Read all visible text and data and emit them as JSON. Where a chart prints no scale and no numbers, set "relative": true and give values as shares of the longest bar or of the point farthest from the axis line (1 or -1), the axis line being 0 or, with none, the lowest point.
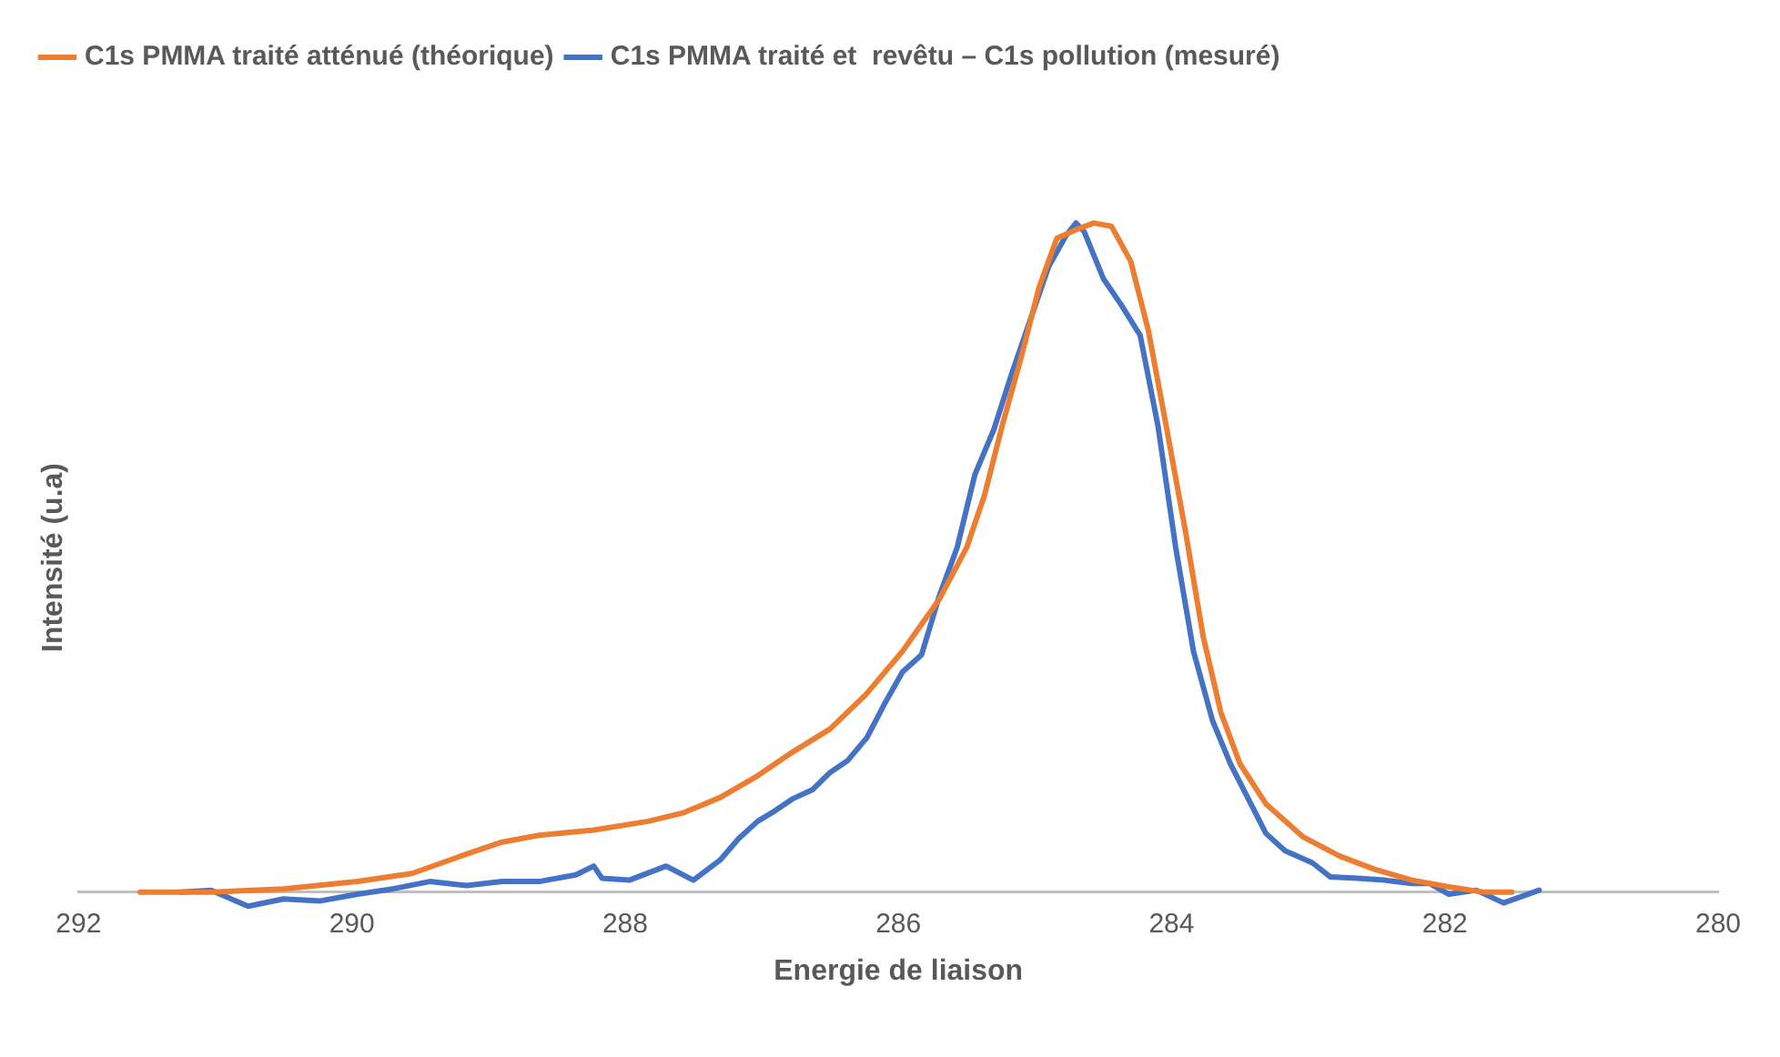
{
  "chart_data": {
    "type": "line",
    "relative": true,
    "xlabel": "Energie de liaison",
    "ylabel": "Intensité (u.a)",
    "xlim": [
      292,
      280
    ],
    "xticks": [
      292,
      290,
      288,
      286,
      284,
      282,
      280
    ],
    "grid": false,
    "legend": "top left",
    "marker": "none",
    "line_style": "solid",
    "series": [
      {
        "name": "C1s PMMA traité atténué (théorique)",
        "color": "#ed7d31",
        "x": [
          291.55,
          291.03,
          290.5,
          289.96,
          289.56,
          289.16,
          288.9,
          288.63,
          288.23,
          287.83,
          287.57,
          287.3,
          287.03,
          286.77,
          286.5,
          286.24,
          285.97,
          285.7,
          285.5,
          285.37,
          285.24,
          285.1,
          284.97,
          284.84,
          284.7,
          284.57,
          284.44,
          284.3,
          284.17,
          284.04,
          283.9,
          283.77,
          283.64,
          283.5,
          283.31,
          283.04,
          282.77,
          282.51,
          282.24,
          281.97,
          281.71,
          281.51
        ],
        "values": [
          0,
          0,
          0.005,
          0.016,
          0.028,
          0.057,
          0.075,
          0.085,
          0.093,
          0.106,
          0.119,
          0.142,
          0.174,
          0.21,
          0.244,
          0.295,
          0.36,
          0.438,
          0.515,
          0.593,
          0.697,
          0.8,
          0.904,
          0.977,
          0.99,
          1,
          0.995,
          0.943,
          0.839,
          0.697,
          0.541,
          0.383,
          0.269,
          0.192,
          0.132,
          0.083,
          0.054,
          0.034,
          0.018,
          0.008,
          0,
          0
        ]
      },
      {
        "name": "C1s PMMA traité et  revêtu – C1s pollution (mesuré)",
        "color": "#4472c4",
        "x": [
          291.25,
          291.03,
          290.76,
          290.5,
          290.23,
          289.96,
          289.7,
          289.43,
          289.16,
          288.9,
          288.63,
          288.36,
          288.23,
          288.17,
          287.97,
          287.7,
          287.5,
          287.3,
          287.17,
          287.03,
          286.9,
          286.77,
          286.63,
          286.5,
          286.37,
          286.23,
          286.1,
          285.97,
          285.83,
          285.7,
          285.57,
          285.44,
          285.3,
          285.17,
          285.04,
          284.9,
          284.77,
          284.7,
          284.64,
          284.5,
          284.37,
          284.23,
          284.1,
          283.97,
          283.84,
          283.7,
          283.57,
          283.44,
          283.31,
          283.17,
          282.97,
          282.84,
          282.64,
          282.44,
          282.24,
          282.11,
          281.97,
          281.77,
          281.57,
          281.31
        ],
        "values": [
          0,
          0.003,
          -0.021,
          -0.01,
          -0.013,
          -0.003,
          0.005,
          0.016,
          0.01,
          0.016,
          0.016,
          0.026,
          0.039,
          0.021,
          0.018,
          0.039,
          0.018,
          0.049,
          0.08,
          0.106,
          0.122,
          0.14,
          0.153,
          0.179,
          0.197,
          0.231,
          0.282,
          0.329,
          0.355,
          0.443,
          0.515,
          0.624,
          0.692,
          0.775,
          0.852,
          0.935,
          0.982,
          1,
          0.987,
          0.917,
          0.878,
          0.832,
          0.697,
          0.515,
          0.36,
          0.256,
          0.192,
          0.14,
          0.088,
          0.062,
          0.044,
          0.023,
          0.021,
          0.018,
          0.013,
          0.013,
          -0.003,
          0.003,
          -0.016,
          0.003
        ]
      }
    ]
  }
}
